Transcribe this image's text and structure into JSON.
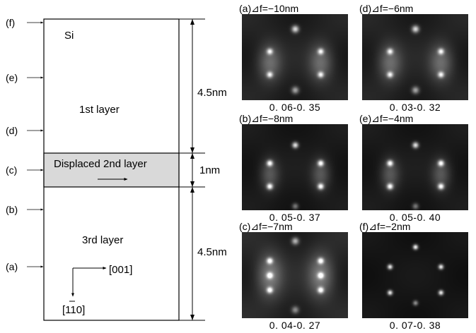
{
  "diagram": {
    "positions": [
      "(f)",
      "(e)",
      "(d)",
      "(c)",
      "(b)",
      "(a)"
    ],
    "material_label": "Si",
    "layer1_label": "1st layer",
    "layer2_label": "Displaced 2nd layer",
    "layer3_label": "3rd layer",
    "dim_top": "4.5nm",
    "dim_mid": "1nm",
    "dim_bottom": "4.5nm",
    "axis_horizontal": "[001]",
    "axis_vertical": "[110]"
  },
  "panels": [
    {
      "title": "(a)⊿f=−10nm",
      "range": "0. 06-0. 35",
      "pattern": "A"
    },
    {
      "title": "(d)⊿f=−6nm",
      "range": "0. 03-0. 32",
      "pattern": "A"
    },
    {
      "title": "(b)⊿f=−8nm",
      "range": "0. 05-0. 37",
      "pattern": "B"
    },
    {
      "title": "(e)⊿f=−4nm",
      "range": "0. 05-0. 40",
      "pattern": "B"
    },
    {
      "title": "(c)⊿f=−7nm",
      "range": "0. 04-0. 27",
      "pattern": "C"
    },
    {
      "title": "(f)⊿f=−2nm",
      "range": "0. 07-0. 38",
      "pattern": "D"
    }
  ]
}
